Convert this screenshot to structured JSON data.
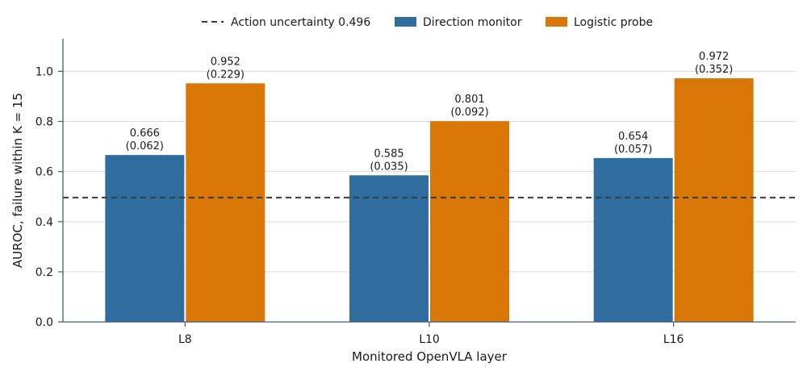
{
  "chart_data": {
    "type": "bar",
    "categories": [
      "L8",
      "L10",
      "L16"
    ],
    "series": [
      {
        "name": "Direction monitor",
        "color": "#2f6d9e",
        "values": [
          0.666,
          0.585,
          0.654
        ],
        "labels": [
          [
            "0.666",
            "(0.062)"
          ],
          [
            "0.585",
            "(0.035)"
          ],
          [
            "0.654",
            "(0.057)"
          ]
        ]
      },
      {
        "name": "Logistic probe",
        "color": "#d97706",
        "values": [
          0.952,
          0.801,
          0.972
        ],
        "labels": [
          [
            "0.952",
            "(0.229)"
          ],
          [
            "0.801",
            "(0.092)"
          ],
          [
            "0.972",
            "(0.352)"
          ]
        ]
      }
    ],
    "reference_line": {
      "name": "Action uncertainty 0.496",
      "value": 0.496,
      "style": "dashed",
      "color": "#333d4a"
    },
    "xlabel": "Monitored OpenVLA layer",
    "ylabel": "AUROC, failure within K = 15",
    "ylim": [
      0,
      1.13
    ],
    "yticks": [
      "0.0",
      "0.2",
      "0.4",
      "0.6",
      "0.8",
      "1.0"
    ],
    "grid": "horizontal",
    "legend_position": "top-center",
    "axis_color": "#4a5a70"
  }
}
